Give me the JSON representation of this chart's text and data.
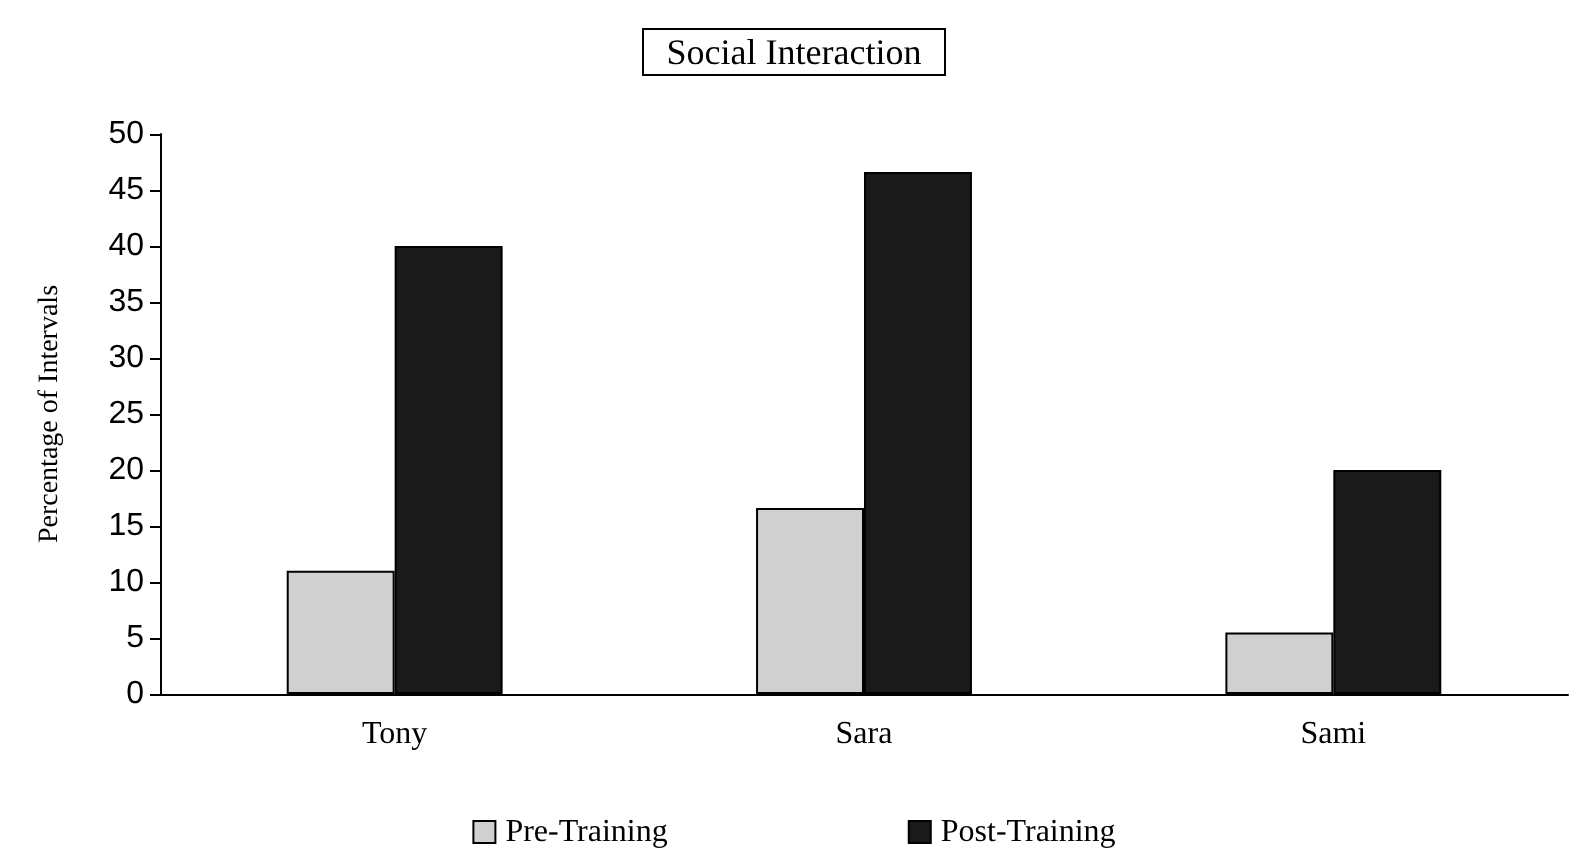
{
  "chart_data": {
    "type": "bar",
    "title": "Social Interaction",
    "ylabel": "Percentage of Intervals",
    "categories": [
      "Tony",
      "Sara",
      "Sami"
    ],
    "series": [
      {
        "name": "Pre-Training",
        "color": "#d0d0d0",
        "values": [
          11,
          16.6,
          5.5
        ]
      },
      {
        "name": "Post-Training",
        "color": "#1a1a1a",
        "values": [
          40,
          46.6,
          20
        ]
      }
    ],
    "ylim": [
      0,
      50
    ],
    "yticks": [
      0,
      5,
      10,
      15,
      20,
      25,
      30,
      35,
      40,
      45,
      50
    ],
    "grid": false,
    "legend": "bottom"
  }
}
